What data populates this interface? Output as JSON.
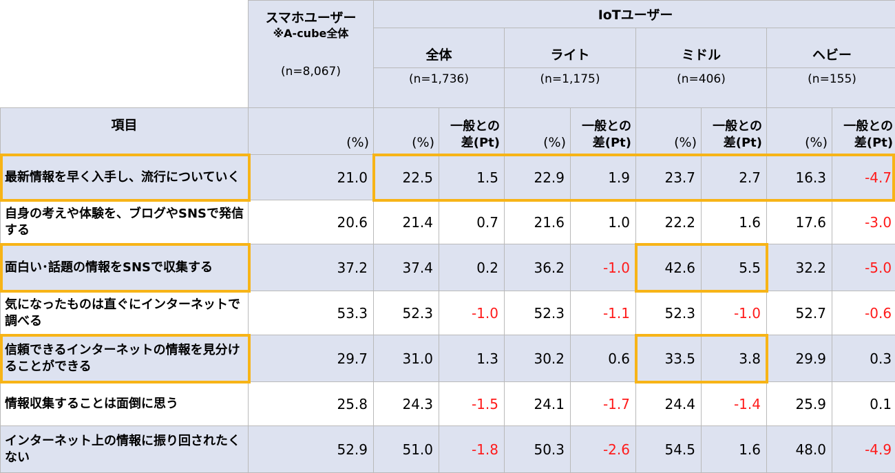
{
  "chart_data": {
    "type": "table",
    "header": {
      "smartphone": {
        "title": "スマホユーザー",
        "note": "※A-cube全体",
        "n": "(n=8,067)",
        "pct": "(%)"
      },
      "iot": {
        "title": "IoTユーザー",
        "groups": [
          {
            "name": "全体",
            "n": "(n=1,736)",
            "pct": "(%)",
            "diff": "一般との差(Pt)"
          },
          {
            "name": "ライト",
            "n": "(n=1,175)",
            "pct": "(%)",
            "diff": "一般との差(Pt)"
          },
          {
            "name": "ミドル",
            "n": "(n=406)",
            "pct": "(%)",
            "diff": "一般との差(Pt)"
          },
          {
            "name": "ヘビー",
            "n": "(n=155)",
            "pct": "(%)",
            "diff": "一般との差(Pt)"
          }
        ]
      },
      "item": "項目"
    },
    "rows": [
      {
        "label": "最新情報を早く入手し、流行についていく",
        "values": [
          "21.0",
          "22.5",
          "1.5",
          "22.9",
          "1.9",
          "23.7",
          "2.7",
          "16.3",
          "-4.7"
        ]
      },
      {
        "label": "自身の考えや体験を、ブログやSNSで発信する",
        "values": [
          "20.6",
          "21.4",
          "0.7",
          "21.6",
          "1.0",
          "22.2",
          "1.6",
          "17.6",
          "-3.0"
        ]
      },
      {
        "label": "面白い･話題の情報をSNSで収集する",
        "values": [
          "37.2",
          "37.4",
          "0.2",
          "36.2",
          "-1.0",
          "42.6",
          "5.5",
          "32.2",
          "-5.0"
        ]
      },
      {
        "label": "気になったものは直ぐにインターネットで調べる",
        "values": [
          "53.3",
          "52.3",
          "-1.0",
          "52.3",
          "-1.1",
          "52.3",
          "-1.0",
          "52.7",
          "-0.6"
        ]
      },
      {
        "label": "信頼できるインターネットの情報を見分けることができる",
        "values": [
          "29.7",
          "31.0",
          "1.3",
          "30.2",
          "0.6",
          "33.5",
          "3.8",
          "29.9",
          "0.3"
        ]
      },
      {
        "label": "情報収集することは面倒に思う",
        "values": [
          "25.8",
          "24.3",
          "-1.5",
          "24.1",
          "-1.7",
          "24.4",
          "-1.4",
          "25.9",
          "0.1"
        ]
      },
      {
        "label": "インターネット上の情報に振り回されたくない",
        "values": [
          "52.9",
          "51.0",
          "-1.8",
          "50.3",
          "-2.6",
          "54.5",
          "1.6",
          "48.0",
          "-4.9"
        ]
      }
    ],
    "highlights": [
      {
        "row": 0,
        "columns": [
          "label"
        ]
      },
      {
        "row": 0,
        "columns": [
          "all_pct",
          "all_diff",
          "light_pct",
          "light_diff",
          "middle_pct",
          "middle_diff",
          "heavy_pct",
          "heavy_diff"
        ]
      },
      {
        "row": 2,
        "columns": [
          "label"
        ]
      },
      {
        "row": 2,
        "columns": [
          "middle_pct",
          "middle_diff"
        ]
      },
      {
        "row": 4,
        "columns": [
          "label"
        ]
      },
      {
        "row": 4,
        "columns": [
          "middle_pct",
          "middle_diff"
        ]
      }
    ],
    "colors": {
      "header_bg": "#dde2f0",
      "negative": "#ff1a1a",
      "highlight": "#f7b417",
      "grid": "#b9b9b9"
    }
  }
}
